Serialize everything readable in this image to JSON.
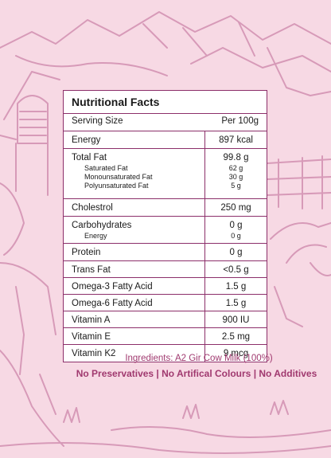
{
  "panel": {
    "title": "Nutritional Facts",
    "header": {
      "label": "Serving Size",
      "value": "Per 100g"
    },
    "rows": [
      {
        "label": "Energy",
        "value": "897 kcal"
      },
      {
        "label": "Total Fat",
        "value": "99.8 g",
        "subs": [
          {
            "label": "Saturated Fat",
            "value": "62 g"
          },
          {
            "label": "Monounsaturated Fat",
            "value": "30 g"
          },
          {
            "label": "Polyunsaturated Fat",
            "value": "5 g"
          }
        ]
      },
      {
        "label": "Cholestrol",
        "value": "250 mg"
      },
      {
        "label": "Carbohydrates",
        "value": "0 g",
        "subs": [
          {
            "label": "Energy",
            "value": "0 g"
          }
        ]
      },
      {
        "label": "Protein",
        "value": "0 g"
      },
      {
        "label": "Trans Fat",
        "value": "<0.5 g"
      },
      {
        "label": "Omega-3 Fatty Acid",
        "value": "1.5 g"
      },
      {
        "label": "Omega-6 Fatty Acid",
        "value": "1.5 g"
      },
      {
        "label": "Vitamin A",
        "value": "900 IU"
      },
      {
        "label": "Vitamin E",
        "value": "2.5 mg"
      },
      {
        "label": "Vitamin K2",
        "value": "9 mcg"
      }
    ]
  },
  "ingredients": "Ingredients: A2 Gir Cow Milk (100%)",
  "claims": "No Preservatives | No Artifical Colours | No Additives",
  "colors": {
    "background": "#f7d9e4",
    "sketch": "#d79ab8",
    "border": "#8c2f6a",
    "accent_text": "#a0396f"
  },
  "icons": [
    "mountains-sketch",
    "barn-sketch",
    "fence-sketch",
    "cow-sketch",
    "grass-sketch"
  ]
}
